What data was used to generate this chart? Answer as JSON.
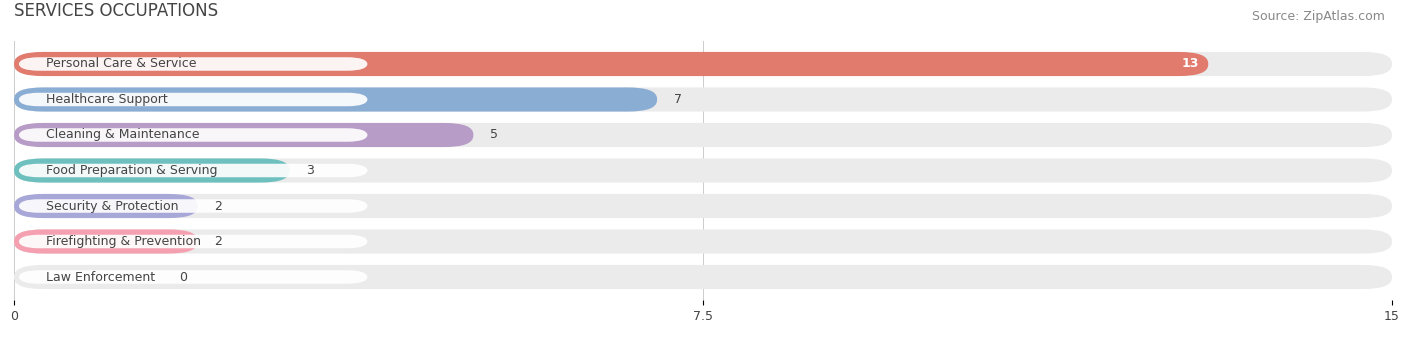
{
  "title": "SERVICES OCCUPATIONS",
  "source": "Source: ZipAtlas.com",
  "categories": [
    "Personal Care & Service",
    "Healthcare Support",
    "Cleaning & Maintenance",
    "Food Preparation & Serving",
    "Security & Protection",
    "Firefighting & Prevention",
    "Law Enforcement"
  ],
  "values": [
    13,
    7,
    5,
    3,
    2,
    2,
    0
  ],
  "bar_colors": [
    "#E07B6E",
    "#8AADD4",
    "#B89CC8",
    "#6DC0BE",
    "#A8A8D8",
    "#F4A0B0",
    "#F5C999"
  ],
  "xlim": [
    0,
    15
  ],
  "xticks": [
    0,
    7.5,
    15
  ],
  "background_color": "#ffffff",
  "bar_bg_color": "#ebebeb",
  "label_color": "#444444",
  "title_fontsize": 12,
  "source_fontsize": 9,
  "bar_fontsize": 9,
  "label_fontsize": 9,
  "value_label_color_inside": "#ffffff",
  "value_label_color_outside": "#444444"
}
